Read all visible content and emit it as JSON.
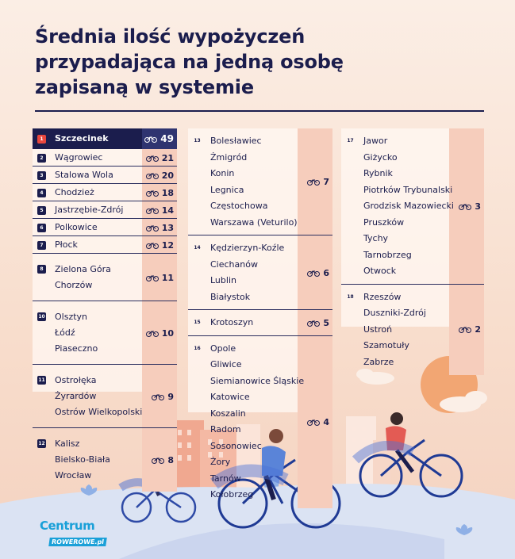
{
  "title": {
    "line1": "Średnia ilość wypożyczeń",
    "line2": "przypadająca na jedną osobę",
    "line3": "zapisaną w systemie"
  },
  "columns": [
    {
      "groups": [
        {
          "rank": "1",
          "names": [
            "Szczecinek"
          ],
          "value": "49",
          "highlight": true
        },
        {
          "rank": "2",
          "names": [
            "Wągrowiec"
          ],
          "value": "21"
        },
        {
          "rank": "3",
          "names": [
            "Stalowa Wola"
          ],
          "value": "20"
        },
        {
          "rank": "4",
          "names": [
            "Chodzież"
          ],
          "value": "18"
        },
        {
          "rank": "5",
          "names": [
            "Jastrzębie-Zdrój"
          ],
          "value": "14"
        },
        {
          "rank": "6",
          "names": [
            "Polkowice"
          ],
          "value": "13"
        },
        {
          "rank": "7",
          "names": [
            "Płock"
          ],
          "value": "12"
        },
        {
          "rank": "8",
          "names": [
            "Zielona Góra",
            "Chorzów"
          ],
          "value": "11"
        },
        {
          "rank": "10",
          "names": [
            "Olsztyn",
            "Łódź",
            "Piaseczno"
          ],
          "value": "10"
        },
        {
          "rank": "11",
          "names": [
            "Ostrołęka",
            "Żyrardów",
            "Ostrów Wielkopolski"
          ],
          "value": "9"
        },
        {
          "rank": "12",
          "names": [
            "Kalisz",
            "Bielsko-Biała",
            "Wrocław"
          ],
          "value": "8"
        }
      ]
    },
    {
      "groups": [
        {
          "rank": "13",
          "names": [
            "Bolesławiec",
            "Żmigród",
            "Konin",
            "Legnica",
            "Częstochowa",
            "Warszawa (Veturilo)"
          ],
          "value": "7"
        },
        {
          "rank": "14",
          "names": [
            "Kędzierzyn-Koźle",
            "Ciechanów",
            "Lublin",
            "Białystok"
          ],
          "value": "6"
        },
        {
          "rank": "15",
          "names": [
            "Krotoszyn"
          ],
          "value": "5"
        },
        {
          "rank": "16",
          "names": [
            "Opole",
            "Gliwice",
            "Siemianowice Śląskie",
            "Katowice",
            "Koszalin",
            "Radom",
            "Sosonowiec",
            "Żory",
            "Tarnów",
            "Kołobrzeg"
          ],
          "value": "4"
        }
      ]
    },
    {
      "groups": [
        {
          "rank": "17",
          "names": [
            "Jawor",
            "Giżycko",
            "Rybnik",
            "Piotrków Trybunalski",
            "Grodzisk Mazowiecki",
            "Pruszków",
            "Tychy",
            "Tarnobrzeg",
            "Otwock"
          ],
          "value": "3"
        },
        {
          "rank": "18",
          "names": [
            "Rzeszów",
            "Duszniki-Zdrój",
            "Ustroń",
            "Szamotuły",
            "Zabrze"
          ],
          "value": "2"
        }
      ]
    }
  ],
  "logo": {
    "line1": "Centrum",
    "line2": "ROWEROWE.pl"
  },
  "colors": {
    "navy": "#1b1d4d",
    "accent": "#e8473e",
    "value_bg": "#f6cdbc",
    "logo_blue": "#1aa0d8"
  },
  "icons": {
    "value_icon": "bicycle-icon"
  }
}
